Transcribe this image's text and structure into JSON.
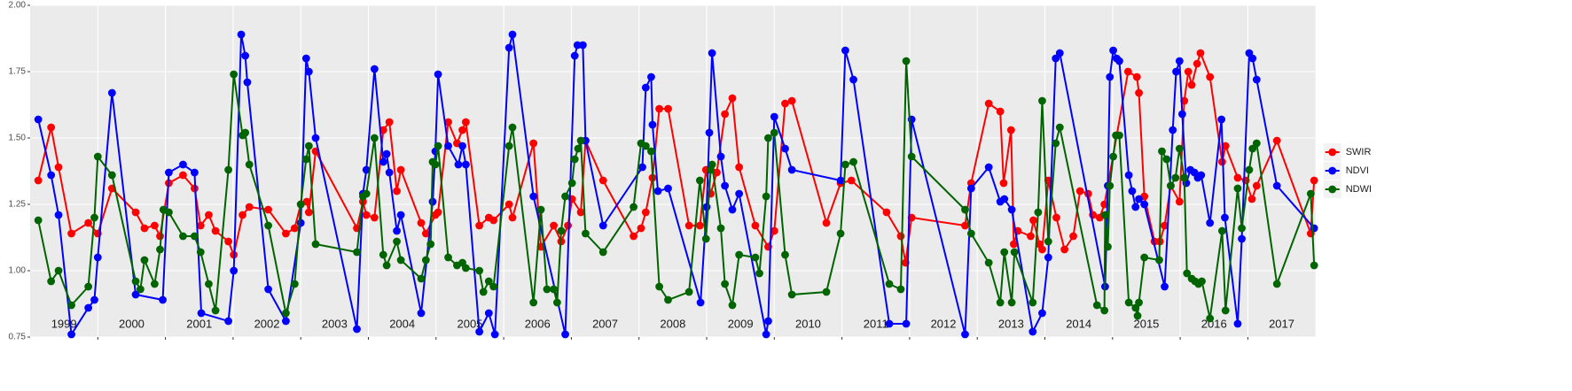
{
  "chart_data": {
    "type": "line",
    "xlim": [
      1999.0,
      2018.0
    ],
    "ylim": [
      0.75,
      2.0
    ],
    "yticks": [
      {
        "value": 0.75,
        "label": "0.75"
      },
      {
        "value": 1.0,
        "label": "1.00"
      },
      {
        "value": 1.25,
        "label": "1.25"
      },
      {
        "value": 1.5,
        "label": "1.50"
      },
      {
        "value": 1.75,
        "label": "1.75"
      },
      {
        "value": 2.0,
        "label": "2.00"
      }
    ],
    "xticks": [
      {
        "value": 1999.5,
        "label": "1999"
      },
      {
        "value": 2000.5,
        "label": "2000"
      },
      {
        "value": 2001.5,
        "label": "2001"
      },
      {
        "value": 2002.5,
        "label": "2002"
      },
      {
        "value": 2003.5,
        "label": "2003"
      },
      {
        "value": 2004.5,
        "label": "2004"
      },
      {
        "value": 2005.5,
        "label": "2005"
      },
      {
        "value": 2006.5,
        "label": "2006"
      },
      {
        "value": 2007.5,
        "label": "2007"
      },
      {
        "value": 2008.5,
        "label": "2008"
      },
      {
        "value": 2009.5,
        "label": "2009"
      },
      {
        "value": 2010.5,
        "label": "2010"
      },
      {
        "value": 2011.5,
        "label": "2011"
      },
      {
        "value": 2012.5,
        "label": "2012"
      },
      {
        "value": 2013.5,
        "label": "2013"
      },
      {
        "value": 2014.5,
        "label": "2014"
      },
      {
        "value": 2015.5,
        "label": "2015"
      },
      {
        "value": 2016.5,
        "label": "2016"
      },
      {
        "value": 2017.5,
        "label": "2017"
      }
    ],
    "xgrid": [
      2000,
      2001,
      2002,
      2003,
      2004,
      2005,
      2006,
      2007,
      2008,
      2009,
      2010,
      2011,
      2012,
      2013,
      2014,
      2015,
      2016,
      2017
    ],
    "grid": true,
    "legend": "right",
    "series": [
      {
        "name": "SWIR",
        "color": "#ff0000",
        "x": [
          1999.12,
          1999.31,
          1999.42,
          1999.61,
          1999.86,
          2000.0,
          2000.21,
          2000.56,
          2000.69,
          2000.84,
          2000.92,
          2001.05,
          2001.26,
          2001.43,
          2001.52,
          2001.64,
          2001.74,
          2001.93,
          2002.01,
          2002.14,
          2002.24,
          2002.52,
          2002.78,
          2002.91,
          2003.0,
          2003.09,
          2003.12,
          2003.22,
          2003.83,
          2003.92,
          2003.97,
          2004.09,
          2004.22,
          2004.31,
          2004.42,
          2004.48,
          2004.78,
          2004.85,
          2004.99,
          2005.03,
          2005.18,
          2005.31,
          2005.39,
          2005.44,
          2005.64,
          2005.78,
          2005.85,
          2006.08,
          2006.13,
          2006.44,
          2006.55,
          2006.74,
          2006.85,
          2006.95,
          2007.01,
          2007.14,
          2007.21,
          2007.47,
          2007.92,
          2008.03,
          2008.1,
          2008.2,
          2008.3,
          2008.43,
          2008.74,
          2008.9,
          2008.99,
          2009.06,
          2009.15,
          2009.27,
          2009.38,
          2009.48,
          2009.72,
          2009.91,
          2010.0,
          2010.16,
          2010.26,
          2010.77,
          2010.98,
          2011.14,
          2011.66,
          2011.87,
          2011.94,
          2012.03,
          2012.82,
          2012.91,
          2013.17,
          2013.34,
          2013.39,
          2013.5,
          2013.54,
          2013.6,
          2013.79,
          2013.83,
          2013.92,
          2013.96,
          2014.05,
          2014.17,
          2014.29,
          2014.42,
          2014.52,
          2014.64,
          2014.71,
          2014.81,
          2014.88,
          2015.23,
          2015.36,
          2015.39,
          2015.47,
          2015.62,
          2015.7,
          2015.77,
          2015.86,
          2015.99,
          2016.06,
          2016.12,
          2016.17,
          2016.25,
          2016.3,
          2016.44,
          2016.62,
          2016.67,
          2016.85,
          2016.97,
          2017.06,
          2017.13,
          2017.43,
          2017.93,
          2017.98
        ],
        "values": [
          1.34,
          1.54,
          1.39,
          1.14,
          1.18,
          1.14,
          1.31,
          1.22,
          1.16,
          1.17,
          1.13,
          1.33,
          1.36,
          1.31,
          1.17,
          1.21,
          1.15,
          1.11,
          1.06,
          1.21,
          1.24,
          1.23,
          1.14,
          1.16,
          1.25,
          1.26,
          1.22,
          1.45,
          1.16,
          1.26,
          1.21,
          1.2,
          1.53,
          1.56,
          1.3,
          1.38,
          1.18,
          1.14,
          1.21,
          1.22,
          1.56,
          1.48,
          1.53,
          1.56,
          1.17,
          1.2,
          1.19,
          1.25,
          1.2,
          1.48,
          1.09,
          1.17,
          1.11,
          1.17,
          1.27,
          1.22,
          1.49,
          1.34,
          1.13,
          1.16,
          1.22,
          1.35,
          1.61,
          1.61,
          1.17,
          1.17,
          1.38,
          1.29,
          1.37,
          1.59,
          1.65,
          1.39,
          1.17,
          1.09,
          1.15,
          1.63,
          1.64,
          1.18,
          1.33,
          1.34,
          1.22,
          1.13,
          1.03,
          1.2,
          1.17,
          1.33,
          1.63,
          1.6,
          1.33,
          1.53,
          1.1,
          1.15,
          1.13,
          1.19,
          1.1,
          1.08,
          1.34,
          1.2,
          1.08,
          1.13,
          1.3,
          1.29,
          1.21,
          1.2,
          1.25,
          1.75,
          1.73,
          1.67,
          1.28,
          1.11,
          1.11,
          1.17,
          1.32,
          1.26,
          1.64,
          1.75,
          1.7,
          1.78,
          1.82,
          1.73,
          1.41,
          1.47,
          1.35,
          1.34,
          1.27,
          1.32,
          1.49,
          1.14,
          1.34
        ]
      },
      {
        "name": "NDVI",
        "color": "#0000ff",
        "x": [
          1999.12,
          1999.31,
          1999.42,
          1999.61,
          1999.86,
          1999.95,
          2000.0,
          2000.21,
          2000.56,
          2000.96,
          2001.05,
          2001.26,
          2001.43,
          2001.53,
          2001.93,
          2002.01,
          2002.12,
          2002.18,
          2002.21,
          2002.52,
          2002.78,
          2003.0,
          2003.08,
          2003.12,
          2003.22,
          2003.83,
          2003.92,
          2003.97,
          2004.09,
          2004.22,
          2004.27,
          2004.31,
          2004.42,
          2004.48,
          2004.78,
          2004.95,
          2004.99,
          2005.03,
          2005.18,
          2005.33,
          2005.39,
          2005.44,
          2005.64,
          2005.78,
          2005.87,
          2006.08,
          2006.13,
          2006.44,
          2006.91,
          2007.05,
          2007.09,
          2007.17,
          2007.21,
          2007.47,
          2008.05,
          2008.1,
          2008.18,
          2008.2,
          2008.28,
          2008.43,
          2008.91,
          2009.0,
          2009.04,
          2009.08,
          2009.21,
          2009.27,
          2009.38,
          2009.48,
          2009.88,
          2009.91,
          2010.0,
          2010.16,
          2010.26,
          2010.98,
          2011.05,
          2011.17,
          2011.7,
          2011.95,
          2012.03,
          2012.82,
          2012.91,
          2013.17,
          2013.34,
          2013.4,
          2013.51,
          2013.82,
          2013.96,
          2014.05,
          2014.16,
          2014.22,
          2014.89,
          2014.93,
          2014.96,
          2015.01,
          2015.06,
          2015.1,
          2015.24,
          2015.29,
          2015.34,
          2015.39,
          2015.47,
          2015.77,
          2015.89,
          2015.94,
          2015.99,
          2016.03,
          2016.09,
          2016.15,
          2016.21,
          2016.26,
          2016.31,
          2016.44,
          2016.61,
          2016.66,
          2016.85,
          2016.91,
          2017.02,
          2017.07,
          2017.13,
          2017.43,
          2017.98
        ],
        "values": [
          1.57,
          1.36,
          1.21,
          0.76,
          0.86,
          0.89,
          1.05,
          1.67,
          0.91,
          0.89,
          1.37,
          1.4,
          1.37,
          0.84,
          0.81,
          1.0,
          1.89,
          1.81,
          1.71,
          0.93,
          0.81,
          1.18,
          1.8,
          1.75,
          1.5,
          0.78,
          1.29,
          1.38,
          1.76,
          1.41,
          1.44,
          1.37,
          1.15,
          1.21,
          0.84,
          1.26,
          1.45,
          1.74,
          1.47,
          1.4,
          1.47,
          1.4,
          0.77,
          0.84,
          0.76,
          1.84,
          1.89,
          1.28,
          0.76,
          1.81,
          1.85,
          1.85,
          1.49,
          1.17,
          1.39,
          1.69,
          1.73,
          1.55,
          1.3,
          1.31,
          0.88,
          1.24,
          1.52,
          1.82,
          1.43,
          1.32,
          1.23,
          1.29,
          0.76,
          0.81,
          1.58,
          1.46,
          1.38,
          1.34,
          1.83,
          1.72,
          0.8,
          0.8,
          1.57,
          0.76,
          1.31,
          1.39,
          1.26,
          1.27,
          1.23,
          0.77,
          0.84,
          1.05,
          1.8,
          1.82,
          0.94,
          1.32,
          1.73,
          1.83,
          1.8,
          1.79,
          1.36,
          1.3,
          1.24,
          1.27,
          1.25,
          0.94,
          1.53,
          1.75,
          1.79,
          1.59,
          1.33,
          1.38,
          1.37,
          1.35,
          1.36,
          1.18,
          1.57,
          1.2,
          0.8,
          1.12,
          1.82,
          1.8,
          1.72,
          1.32,
          1.16
        ]
      },
      {
        "name": "NDWI",
        "color": "#006400",
        "x": [
          1999.12,
          1999.31,
          1999.42,
          1999.61,
          1999.86,
          1999.95,
          2000.0,
          2000.21,
          2000.56,
          2000.63,
          2000.69,
          2000.84,
          2000.92,
          2000.97,
          2001.05,
          2001.26,
          2001.43,
          2001.52,
          2001.64,
          2001.74,
          2001.93,
          2002.01,
          2002.14,
          2002.18,
          2002.24,
          2002.52,
          2002.78,
          2002.91,
          2003.0,
          2003.08,
          2003.12,
          2003.22,
          2003.83,
          2003.92,
          2003.97,
          2004.09,
          2004.22,
          2004.27,
          2004.42,
          2004.48,
          2004.78,
          2004.85,
          2004.92,
          2004.95,
          2004.99,
          2005.03,
          2005.18,
          2005.31,
          2005.39,
          2005.44,
          2005.64,
          2005.7,
          2005.78,
          2005.85,
          2006.08,
          2006.13,
          2006.44,
          2006.55,
          2006.64,
          2006.74,
          2006.79,
          2006.85,
          2006.91,
          2007.01,
          2007.05,
          2007.1,
          2007.14,
          2007.21,
          2007.47,
          2007.92,
          2008.03,
          2008.1,
          2008.18,
          2008.3,
          2008.43,
          2008.74,
          2008.9,
          2008.99,
          2009.06,
          2009.08,
          2009.21,
          2009.27,
          2009.38,
          2009.48,
          2009.72,
          2009.78,
          2009.88,
          2009.91,
          2010.0,
          2010.16,
          2010.26,
          2010.77,
          2010.98,
          2011.05,
          2011.17,
          2011.7,
          2011.87,
          2011.95,
          2012.03,
          2012.82,
          2012.91,
          2013.17,
          2013.34,
          2013.4,
          2013.51,
          2013.55,
          2013.82,
          2013.9,
          2013.96,
          2014.05,
          2014.16,
          2014.22,
          2014.77,
          2014.88,
          2014.89,
          2014.93,
          2014.96,
          2015.01,
          2015.05,
          2015.1,
          2015.24,
          2015.34,
          2015.37,
          2015.39,
          2015.47,
          2015.69,
          2015.73,
          2015.8,
          2015.86,
          2015.93,
          2015.99,
          2016.06,
          2016.1,
          2016.17,
          2016.22,
          2016.27,
          2016.32,
          2016.44,
          2016.62,
          2016.67,
          2016.85,
          2016.91,
          2017.02,
          2017.07,
          2017.13,
          2017.43,
          2017.93,
          2017.98
        ],
        "values": [
          1.19,
          0.96,
          1.0,
          0.87,
          0.94,
          1.2,
          1.43,
          1.36,
          0.96,
          0.93,
          1.04,
          0.95,
          1.08,
          1.23,
          1.22,
          1.13,
          1.13,
          1.07,
          0.95,
          0.85,
          1.38,
          1.74,
          1.51,
          1.52,
          1.4,
          1.17,
          0.84,
          0.95,
          1.25,
          1.42,
          1.47,
          1.1,
          1.07,
          1.28,
          1.29,
          1.5,
          1.06,
          1.02,
          1.11,
          1.04,
          0.97,
          1.04,
          1.1,
          1.41,
          1.4,
          1.47,
          1.05,
          1.02,
          1.03,
          1.01,
          1.0,
          0.92,
          0.96,
          0.94,
          1.47,
          1.54,
          0.88,
          1.23,
          0.93,
          0.93,
          0.88,
          1.15,
          1.28,
          1.33,
          1.42,
          1.46,
          1.49,
          1.14,
          1.07,
          1.24,
          1.48,
          1.47,
          1.45,
          0.94,
          0.89,
          0.92,
          1.34,
          1.12,
          1.38,
          1.4,
          1.16,
          0.95,
          0.87,
          1.06,
          1.05,
          0.99,
          1.28,
          1.5,
          1.52,
          1.06,
          0.91,
          0.92,
          1.14,
          1.4,
          1.41,
          0.95,
          0.93,
          1.79,
          1.43,
          1.23,
          1.14,
          1.03,
          0.88,
          1.07,
          0.88,
          1.07,
          0.88,
          1.22,
          1.64,
          1.11,
          1.48,
          1.54,
          0.87,
          0.85,
          1.21,
          1.09,
          1.32,
          1.43,
          1.51,
          1.51,
          0.88,
          0.86,
          0.83,
          0.88,
          1.05,
          1.04,
          1.45,
          1.42,
          1.32,
          1.35,
          1.46,
          1.35,
          0.99,
          0.97,
          0.96,
          0.95,
          0.96,
          0.82,
          1.15,
          0.85,
          1.31,
          1.16,
          1.38,
          1.46,
          1.48,
          0.95,
          1.29,
          1.02
        ]
      }
    ]
  }
}
